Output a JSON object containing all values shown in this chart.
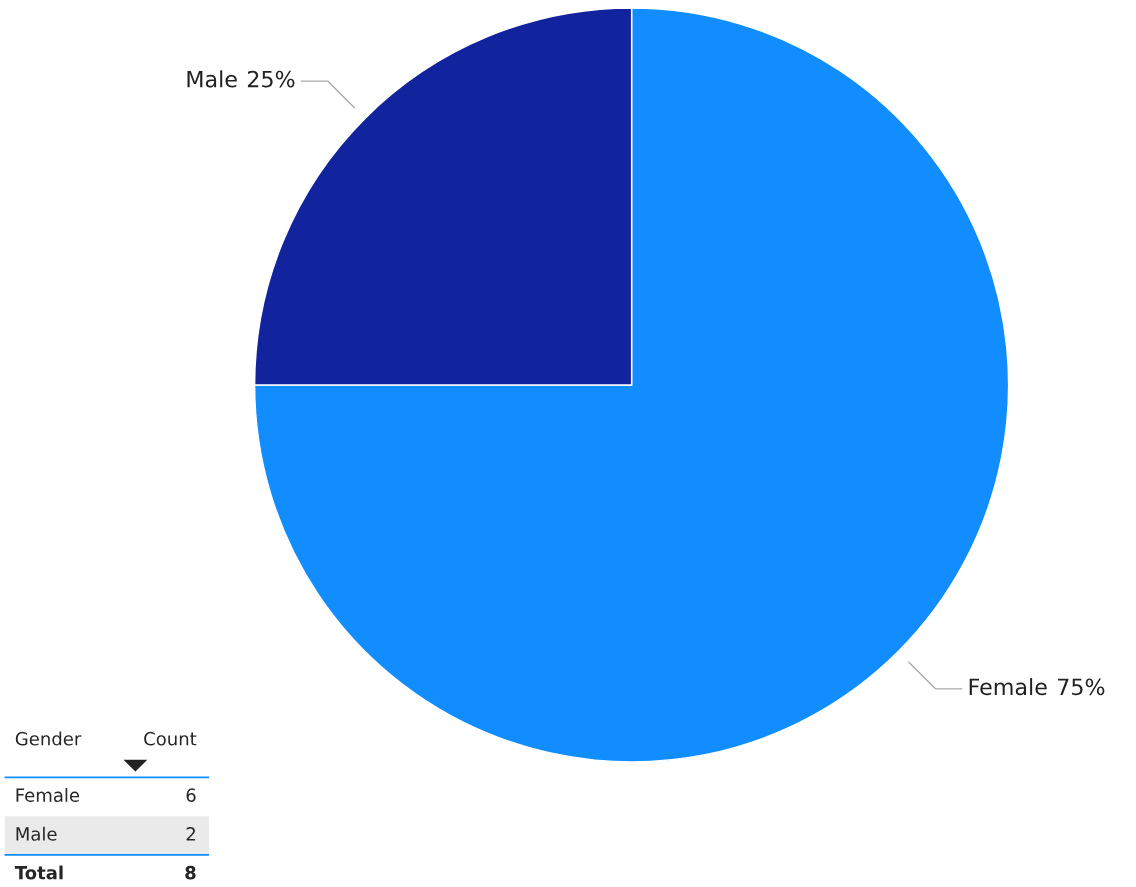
{
  "chart_data": [
    {
      "type": "pie",
      "categories": [
        "Female",
        "Male"
      ],
      "values": [
        75,
        25
      ],
      "colors": [
        "#118dff",
        "#12239e"
      ],
      "value_labels": [
        "75%",
        "25%"
      ]
    },
    {
      "type": "other",
      "xlabel": "Gender",
      "ylabel": "Count",
      "categories": [
        "Female",
        "Male"
      ],
      "values": [
        6,
        2
      ],
      "data_labels": true,
      "annotations": [
        "Total",
        "8"
      ]
    }
  ]
}
